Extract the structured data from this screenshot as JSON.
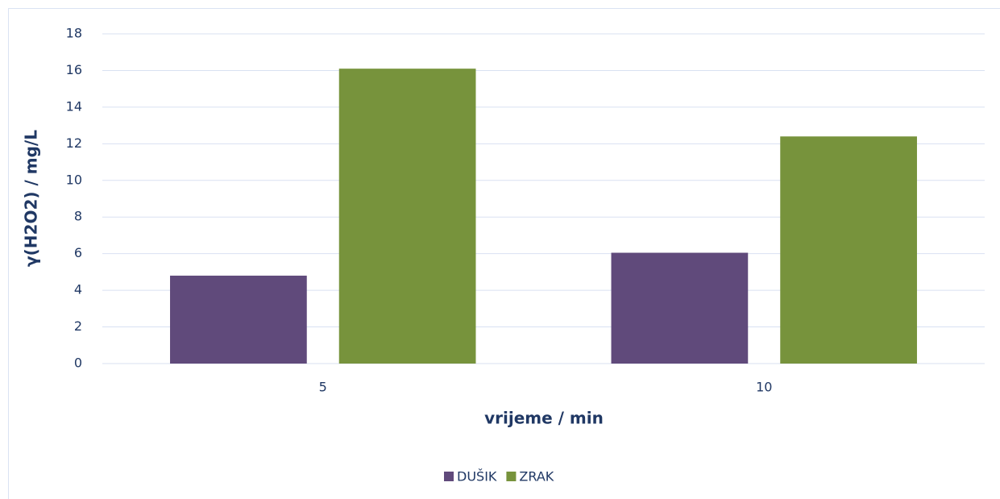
{
  "chart_data": {
    "type": "bar",
    "categories": [
      "5",
      "10"
    ],
    "series": [
      {
        "name": "DUŠIK",
        "color": "#604a7b",
        "values": [
          4.8,
          6.05
        ]
      },
      {
        "name": "ZRAK",
        "color": "#77933c",
        "values": [
          16.1,
          12.4
        ]
      }
    ],
    "ylim": [
      0,
      18
    ],
    "yticks": [
      0,
      2,
      4,
      6,
      8,
      10,
      12,
      14,
      16,
      18
    ],
    "xlabel": "vrijeme / min",
    "ylabel": "γ(H2O2) / mg/L",
    "grid": true,
    "legend": "bottom"
  }
}
